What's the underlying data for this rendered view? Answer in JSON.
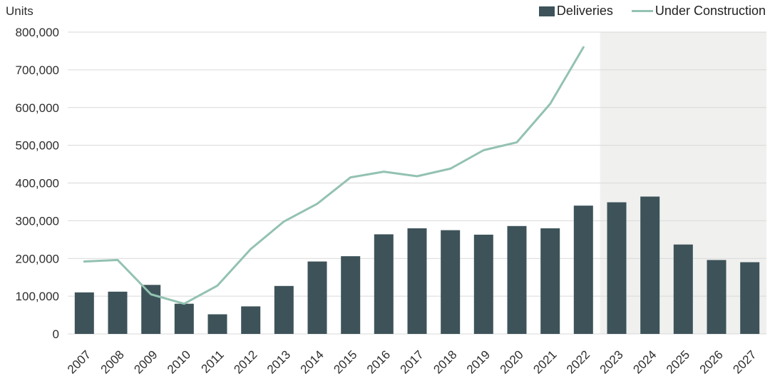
{
  "chart_data": {
    "type": "bar+line",
    "title": "Units",
    "categories": [
      "2007",
      "2008",
      "2009",
      "2010",
      "2011",
      "2012",
      "2013",
      "2014",
      "2015",
      "2016",
      "2017",
      "2018",
      "2019",
      "2020",
      "2021",
      "2022",
      "2023",
      "2024",
      "2025",
      "2026",
      "2027"
    ],
    "series": [
      {
        "name": "Deliveries",
        "type": "bar",
        "color": "#3d5359",
        "values": [
          110000,
          112000,
          130000,
          80000,
          52000,
          73000,
          127000,
          192000,
          206000,
          264000,
          280000,
          275000,
          263000,
          286000,
          280000,
          340000,
          349000,
          364000,
          237000,
          196000,
          190000
        ]
      },
      {
        "name": "Under Construction",
        "type": "line",
        "color": "#93c2b1",
        "values": [
          192000,
          196000,
          105000,
          80000,
          128000,
          225000,
          298000,
          345000,
          415000,
          430000,
          418000,
          438000,
          487000,
          508000,
          610000,
          760000,
          null,
          null,
          null,
          null,
          null
        ]
      }
    ],
    "ylim": [
      0,
      800000
    ],
    "ytick_step": 100000,
    "ytick_labels": [
      "0",
      "100,000",
      "200,000",
      "300,000",
      "400,000",
      "500,000",
      "600,000",
      "700,000",
      "800,000"
    ],
    "grid": true,
    "legend_position": "top-right",
    "forecast_start_category": "2023",
    "forecast_band_color": "#f0f0ef",
    "gridline_color": "#d9d9d9"
  }
}
